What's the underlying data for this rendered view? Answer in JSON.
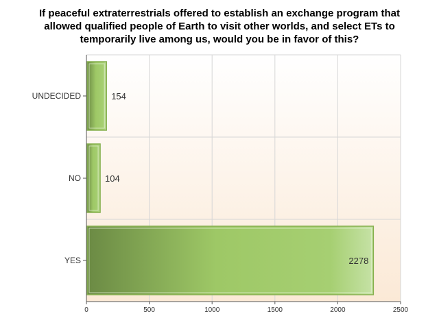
{
  "chart_data": {
    "type": "bar",
    "orientation": "horizontal",
    "title_lines": [
      "If peaceful extraterrestrials offered to establish an exchange program that",
      "allowed qualified people of Earth to visit other worlds, and select ETs to",
      "temporarily live among us, would you be in favor of this?"
    ],
    "categories": [
      "UNDECIDED",
      "NO",
      "YES"
    ],
    "values": [
      154,
      104,
      2278
    ],
    "xlim": [
      0,
      2500
    ],
    "xticks": [
      0,
      500,
      1000,
      1500,
      2000,
      2500
    ],
    "xlabel": "",
    "ylabel": "",
    "grid": true,
    "legend": "none",
    "colors": {
      "bar_light": "#c6e2a6",
      "bar_mid": "#9ec866",
      "bar_dark": "#6b8a44",
      "bar_border": "#86b04e",
      "plot_bg_top": "#ffffff",
      "plot_bg_bottom": "#fbe9d6",
      "grid": "#d6d6d6",
      "axis": "#555555",
      "label": "#333333"
    }
  }
}
